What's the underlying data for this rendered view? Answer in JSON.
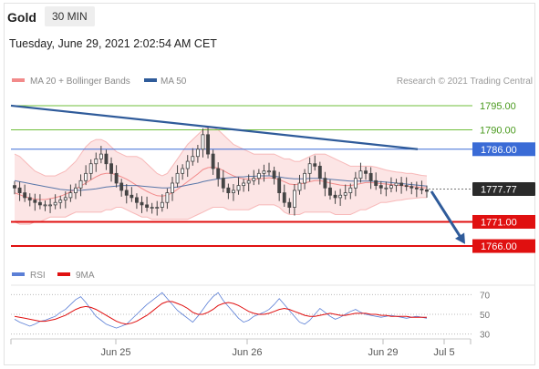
{
  "header": {
    "symbol": "Gold",
    "timeframe": "30 MIN",
    "datetime": "Tuesday, June 29, 2021 2:02:54 AM CET"
  },
  "colors": {
    "bollinger": "#f28a8a",
    "ma50": "#2f5b9a",
    "candle": "#444444",
    "trendline": "#2f5b9a",
    "rsi": "#5b7fd6",
    "rsi_ma": "#e01010",
    "resistance_green": "#6fbf3a",
    "level_blue": "#3a6bd6",
    "support_red": "#e01010",
    "current_price_bg": "#2b2b2b"
  },
  "chart_data": [
    {
      "type": "candlestick",
      "title": "",
      "legend": [
        {
          "label": "MA 20 + Bollinger Bands",
          "color": "#f28a8a"
        },
        {
          "label": "MA 50",
          "color": "#2f5b9a"
        }
      ],
      "credit": "Research © 2021 Trading Central",
      "ylim": [
        1763,
        1798
      ],
      "x_ticks": [
        "Jun 25",
        "Jun 26",
        "Jun 29",
        "Jul 5"
      ],
      "current_price": "1777.77",
      "levels": [
        {
          "label": "1795.00",
          "value": 1795.0,
          "style": "resistance-green"
        },
        {
          "label": "1790.00",
          "value": 1790.0,
          "style": "resistance-green"
        },
        {
          "label": "1786.00",
          "value": 1786.0,
          "style": "pivot-blue"
        },
        {
          "label": "1771.00",
          "value": 1771.0,
          "style": "support-red"
        },
        {
          "label": "1766.00",
          "value": 1766.0,
          "style": "support-red"
        }
      ],
      "trendline": {
        "start": 1795.0,
        "end": 1786.0
      },
      "projection": {
        "from": 1777.3,
        "to": 1766.4
      },
      "close": [
        1778,
        1777,
        1776,
        1775.5,
        1775,
        1774.5,
        1774.5,
        1774.5,
        1775,
        1775.5,
        1776,
        1777,
        1778,
        1779.5,
        1781,
        1783,
        1784,
        1785,
        1783,
        1781,
        1779,
        1777.5,
        1776.5,
        1776,
        1775,
        1774.5,
        1774,
        1774,
        1774,
        1775,
        1777,
        1779,
        1781,
        1782,
        1783.5,
        1784.5,
        1786,
        1789,
        1785,
        1782,
        1780,
        1778,
        1777,
        1777.5,
        1778.5,
        1779,
        1779.5,
        1780,
        1781,
        1781.5,
        1781.5,
        1780,
        1777,
        1775,
        1774,
        1777.5,
        1779,
        1781,
        1783,
        1782.5,
        1780,
        1778,
        1776.5,
        1776,
        1776.5,
        1777,
        1778,
        1780,
        1781.5,
        1781,
        1779.5,
        1778.5,
        1778,
        1778,
        1778.5,
        1779,
        1778.5,
        1778.3,
        1778,
        1777.8,
        1777.6,
        1777.3
      ],
      "ma20": [
        1777,
        1776.6,
        1776.2,
        1775.9,
        1775.7,
        1775.6,
        1775.6,
        1775.8,
        1776,
        1776.3,
        1776.7,
        1777.2,
        1777.8,
        1778.4,
        1779,
        1779.7,
        1780.3,
        1780.8,
        1781,
        1781,
        1780.7,
        1780.3,
        1779.8,
        1779.2,
        1778.5,
        1777.9,
        1777.3,
        1776.8,
        1776.4,
        1776.3,
        1776.5,
        1777,
        1777.7,
        1778.5,
        1779.3,
        1780.1,
        1780.9,
        1781.8,
        1782.2,
        1782.3,
        1782.1,
        1781.6,
        1781,
        1780.5,
        1780.1,
        1779.9,
        1779.8,
        1779.8,
        1779.9,
        1780,
        1780.1,
        1780,
        1779.7,
        1779.3,
        1778.8,
        1778.7,
        1778.8,
        1779,
        1779.3,
        1779.5,
        1779.5,
        1779.3,
        1779,
        1778.8,
        1778.6,
        1778.5,
        1778.5,
        1778.7,
        1778.9,
        1779.1,
        1779.1,
        1779,
        1778.9,
        1778.8,
        1778.7,
        1778.6,
        1778.5,
        1778.4,
        1778.3,
        1778.2,
        1778.1,
        1778
      ],
      "bb_upper": [
        1785,
        1784.5,
        1783.5,
        1782.5,
        1781.5,
        1781,
        1780.5,
        1780.5,
        1780.5,
        1781,
        1781.5,
        1782.5,
        1783.5,
        1785,
        1786.5,
        1787.5,
        1788,
        1788,
        1787.5,
        1786.5,
        1785.5,
        1785,
        1784.5,
        1784.5,
        1784.5,
        1784,
        1783,
        1782,
        1781,
        1780.5,
        1781,
        1782.5,
        1784,
        1785.5,
        1787,
        1788,
        1789,
        1790,
        1790.5,
        1790.5,
        1790,
        1789,
        1788,
        1787,
        1786.5,
        1786,
        1785.5,
        1785,
        1785,
        1785,
        1785,
        1785,
        1784.5,
        1784,
        1784,
        1783.5,
        1783.5,
        1784,
        1784.5,
        1785,
        1785,
        1785,
        1784.5,
        1784,
        1783.5,
        1783,
        1782.5,
        1782.5,
        1782.5,
        1782.5,
        1782.5,
        1782.3,
        1782,
        1781.7,
        1781.5,
        1781.3,
        1781.2,
        1781,
        1781,
        1780.8,
        1780.6,
        1780.5
      ],
      "bb_lower": [
        1771,
        1770.5,
        1770.5,
        1770.5,
        1771,
        1771,
        1771.5,
        1772,
        1772,
        1772,
        1772,
        1772.5,
        1773,
        1773,
        1773,
        1773,
        1773,
        1773,
        1773.5,
        1773.5,
        1774,
        1774,
        1773.5,
        1773,
        1772.5,
        1772,
        1772,
        1771.5,
        1771.5,
        1771.5,
        1771.5,
        1771.5,
        1771.5,
        1771.5,
        1771.5,
        1772,
        1772.5,
        1773,
        1773.5,
        1774,
        1774,
        1774,
        1773.5,
        1773.5,
        1773.5,
        1773.5,
        1773.5,
        1774,
        1774.5,
        1774.5,
        1774.5,
        1774.5,
        1774,
        1773,
        1772.5,
        1772.5,
        1772.5,
        1773,
        1773,
        1773,
        1773,
        1773,
        1773,
        1772.5,
        1772.5,
        1772.5,
        1772.5,
        1773,
        1773.5,
        1773.5,
        1774,
        1774.5,
        1775,
        1775,
        1775.2,
        1775.4,
        1775.5,
        1775.7,
        1775.8,
        1775.9,
        1776,
        1776
      ],
      "ma50": [
        1779.5,
        1779.3,
        1779.1,
        1778.9,
        1778.7,
        1778.5,
        1778.3,
        1778.1,
        1777.9,
        1777.7,
        1777.6,
        1777.5,
        1777.5,
        1777.5,
        1777.6,
        1777.7,
        1777.8,
        1778,
        1778.2,
        1778.3,
        1778.4,
        1778.5,
        1778.5,
        1778.5,
        1778.5,
        1778.4,
        1778.3,
        1778.2,
        1778.1,
        1778,
        1778,
        1778.1,
        1778.2,
        1778.4,
        1778.6,
        1778.8,
        1779,
        1779.3,
        1779.5,
        1779.7,
        1779.9,
        1780,
        1780.1,
        1780.2,
        1780.3,
        1780.3,
        1780.4,
        1780.4,
        1780.5,
        1780.5,
        1780.5,
        1780.4,
        1780.3,
        1780.1,
        1780,
        1779.9,
        1779.9,
        1779.9,
        1780,
        1780,
        1780,
        1779.9,
        1779.8,
        1779.7,
        1779.6,
        1779.5,
        1779.4,
        1779.4,
        1779.4,
        1779.4,
        1779.4,
        1779.3,
        1779.3,
        1779.2,
        1779.1,
        1779,
        1778.9,
        1778.8,
        1778.7,
        1778.6,
        1778.5,
        1778.4
      ]
    },
    {
      "type": "line",
      "title": "",
      "legend": [
        {
          "label": "RSI",
          "color": "#5b7fd6"
        },
        {
          "label": "9MA",
          "color": "#e01010"
        }
      ],
      "ylim": [
        25,
        75
      ],
      "y_ticks": [
        "70",
        "50",
        "30"
      ],
      "series": [
        {
          "name": "RSI",
          "values": [
            45,
            42,
            40,
            38,
            40,
            43,
            44,
            46,
            48,
            52,
            55,
            60,
            65,
            68,
            62,
            55,
            48,
            44,
            40,
            38,
            36,
            38,
            40,
            45,
            50,
            55,
            60,
            64,
            68,
            72,
            66,
            60,
            54,
            50,
            46,
            42,
            48,
            55,
            62,
            68,
            72,
            64,
            58,
            52,
            46,
            42,
            44,
            48,
            50,
            52,
            55,
            60,
            66,
            60,
            54,
            48,
            42,
            40,
            44,
            50,
            56,
            52,
            48,
            45,
            47,
            50,
            53,
            55,
            52,
            50,
            49,
            48,
            47,
            48,
            49,
            48,
            47,
            46,
            47,
            48,
            47,
            46
          ]
        },
        {
          "name": "9MA",
          "values": [
            48,
            47,
            46,
            45,
            44,
            43,
            43,
            44,
            45,
            47,
            49,
            52,
            55,
            57,
            58,
            57,
            55,
            52,
            49,
            46,
            43,
            41,
            40,
            41,
            43,
            46,
            49,
            53,
            57,
            61,
            63,
            63,
            61,
            59,
            56,
            52,
            50,
            50,
            52,
            55,
            59,
            61,
            62,
            61,
            59,
            56,
            53,
            51,
            50,
            50,
            51,
            53,
            55,
            56,
            55,
            53,
            51,
            49,
            48,
            48,
            49,
            50,
            51,
            50,
            49,
            49,
            50,
            51,
            51,
            51,
            50,
            50,
            49,
            49,
            48,
            48,
            48,
            48,
            47,
            47,
            47,
            47
          ]
        }
      ]
    }
  ]
}
